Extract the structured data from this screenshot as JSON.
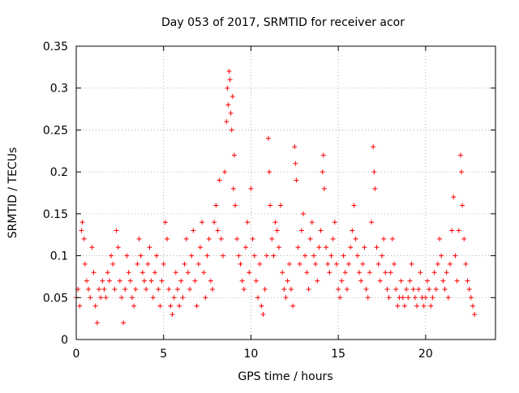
{
  "chart_data": {
    "type": "scatter",
    "title": "Day 053 of 2017, SRMTID for receiver acor",
    "xlabel": "GPS time / hours",
    "ylabel": "SRMTID / TECUs",
    "xlim": [
      0,
      24
    ],
    "ylim": [
      0,
      0.35
    ],
    "xticks": [
      0,
      5,
      10,
      15,
      20
    ],
    "xtick_labels": [
      "0",
      "5",
      "10",
      "15",
      "20"
    ],
    "yticks": [
      0,
      0.05,
      0.1,
      0.15,
      0.2,
      0.25,
      0.3,
      0.35
    ],
    "ytick_labels": [
      "0",
      "0.05",
      "0.1",
      "0.15",
      "0.2",
      "0.25",
      "0.3",
      "0.35"
    ],
    "grid": true,
    "marker": "+",
    "color": "#ff0000",
    "series": [
      {
        "name": "SRMTID",
        "points": [
          [
            0.0,
            0.05
          ],
          [
            0.1,
            0.06
          ],
          [
            0.2,
            0.04
          ],
          [
            0.3,
            0.13
          ],
          [
            0.35,
            0.14
          ],
          [
            0.45,
            0.12
          ],
          [
            0.5,
            0.09
          ],
          [
            0.6,
            0.07
          ],
          [
            0.7,
            0.06
          ],
          [
            0.8,
            0.05
          ],
          [
            0.9,
            0.11
          ],
          [
            1.0,
            0.08
          ],
          [
            1.1,
            0.04
          ],
          [
            1.2,
            0.02
          ],
          [
            1.3,
            0.06
          ],
          [
            1.4,
            0.05
          ],
          [
            1.5,
            0.07
          ],
          [
            1.6,
            0.06
          ],
          [
            1.7,
            0.05
          ],
          [
            1.8,
            0.08
          ],
          [
            1.9,
            0.07
          ],
          [
            2.0,
            0.1
          ],
          [
            2.1,
            0.09
          ],
          [
            2.2,
            0.06
          ],
          [
            2.3,
            0.13
          ],
          [
            2.4,
            0.11
          ],
          [
            2.5,
            0.07
          ],
          [
            2.6,
            0.05
          ],
          [
            2.7,
            0.02
          ],
          [
            2.8,
            0.06
          ],
          [
            2.9,
            0.1
          ],
          [
            3.0,
            0.08
          ],
          [
            3.1,
            0.07
          ],
          [
            3.2,
            0.05
          ],
          [
            3.3,
            0.04
          ],
          [
            3.4,
            0.06
          ],
          [
            3.5,
            0.09
          ],
          [
            3.6,
            0.12
          ],
          [
            3.7,
            0.1
          ],
          [
            3.8,
            0.08
          ],
          [
            3.9,
            0.07
          ],
          [
            4.0,
            0.06
          ],
          [
            4.1,
            0.09
          ],
          [
            4.2,
            0.11
          ],
          [
            4.3,
            0.07
          ],
          [
            4.4,
            0.05
          ],
          [
            4.5,
            0.08
          ],
          [
            4.6,
            0.1
          ],
          [
            4.7,
            0.06
          ],
          [
            4.8,
            0.04
          ],
          [
            4.9,
            0.07
          ],
          [
            5.0,
            0.09
          ],
          [
            5.1,
            0.14
          ],
          [
            5.2,
            0.12
          ],
          [
            5.3,
            0.06
          ],
          [
            5.4,
            0.04
          ],
          [
            5.5,
            0.03
          ],
          [
            5.6,
            0.05
          ],
          [
            5.7,
            0.08
          ],
          [
            5.8,
            0.06
          ],
          [
            5.9,
            0.04
          ],
          [
            6.0,
            0.07
          ],
          [
            6.1,
            0.05
          ],
          [
            6.2,
            0.09
          ],
          [
            6.3,
            0.12
          ],
          [
            6.4,
            0.08
          ],
          [
            6.5,
            0.06
          ],
          [
            6.6,
            0.1
          ],
          [
            6.7,
            0.13
          ],
          [
            6.8,
            0.07
          ],
          [
            6.9,
            0.04
          ],
          [
            7.0,
            0.09
          ],
          [
            7.1,
            0.11
          ],
          [
            7.2,
            0.14
          ],
          [
            7.3,
            0.08
          ],
          [
            7.4,
            0.05
          ],
          [
            7.5,
            0.1
          ],
          [
            7.6,
            0.12
          ],
          [
            7.7,
            0.07
          ],
          [
            7.8,
            0.06
          ],
          [
            7.9,
            0.14
          ],
          [
            8.0,
            0.16
          ],
          [
            8.1,
            0.13
          ],
          [
            8.2,
            0.19
          ],
          [
            8.3,
            0.12
          ],
          [
            8.4,
            0.1
          ],
          [
            8.5,
            0.2
          ],
          [
            8.6,
            0.26
          ],
          [
            8.65,
            0.3
          ],
          [
            8.7,
            0.28
          ],
          [
            8.75,
            0.32
          ],
          [
            8.8,
            0.31
          ],
          [
            8.85,
            0.27
          ],
          [
            8.9,
            0.25
          ],
          [
            8.95,
            0.29
          ],
          [
            9.0,
            0.18
          ],
          [
            9.05,
            0.22
          ],
          [
            9.1,
            0.16
          ],
          [
            9.2,
            0.12
          ],
          [
            9.3,
            0.1
          ],
          [
            9.4,
            0.09
          ],
          [
            9.5,
            0.07
          ],
          [
            9.6,
            0.06
          ],
          [
            9.7,
            0.11
          ],
          [
            9.8,
            0.14
          ],
          [
            9.9,
            0.08
          ],
          [
            10.0,
            0.18
          ],
          [
            10.1,
            0.12
          ],
          [
            10.2,
            0.1
          ],
          [
            10.3,
            0.07
          ],
          [
            10.4,
            0.05
          ],
          [
            10.5,
            0.09
          ],
          [
            10.6,
            0.04
          ],
          [
            10.7,
            0.03
          ],
          [
            10.8,
            0.06
          ],
          [
            10.9,
            0.1
          ],
          [
            11.0,
            0.24
          ],
          [
            11.05,
            0.2
          ],
          [
            11.1,
            0.16
          ],
          [
            11.2,
            0.12
          ],
          [
            11.3,
            0.1
          ],
          [
            11.4,
            0.14
          ],
          [
            11.5,
            0.13
          ],
          [
            11.6,
            0.11
          ],
          [
            11.7,
            0.16
          ],
          [
            11.8,
            0.08
          ],
          [
            11.9,
            0.06
          ],
          [
            12.0,
            0.05
          ],
          [
            12.1,
            0.07
          ],
          [
            12.2,
            0.09
          ],
          [
            12.3,
            0.06
          ],
          [
            12.4,
            0.04
          ],
          [
            12.5,
            0.23
          ],
          [
            12.55,
            0.21
          ],
          [
            12.6,
            0.19
          ],
          [
            12.7,
            0.11
          ],
          [
            12.8,
            0.09
          ],
          [
            12.9,
            0.13
          ],
          [
            13.0,
            0.15
          ],
          [
            13.1,
            0.1
          ],
          [
            13.2,
            0.08
          ],
          [
            13.3,
            0.06
          ],
          [
            13.4,
            0.12
          ],
          [
            13.5,
            0.14
          ],
          [
            13.6,
            0.1
          ],
          [
            13.7,
            0.09
          ],
          [
            13.8,
            0.07
          ],
          [
            13.9,
            0.11
          ],
          [
            14.0,
            0.13
          ],
          [
            14.1,
            0.2
          ],
          [
            14.15,
            0.22
          ],
          [
            14.2,
            0.18
          ],
          [
            14.3,
            0.11
          ],
          [
            14.4,
            0.09
          ],
          [
            14.5,
            0.08
          ],
          [
            14.6,
            0.1
          ],
          [
            14.7,
            0.12
          ],
          [
            14.8,
            0.14
          ],
          [
            14.9,
            0.09
          ],
          [
            15.0,
            0.06
          ],
          [
            15.1,
            0.05
          ],
          [
            15.2,
            0.07
          ],
          [
            15.3,
            0.1
          ],
          [
            15.4,
            0.08
          ],
          [
            15.5,
            0.06
          ],
          [
            15.6,
            0.09
          ],
          [
            15.7,
            0.11
          ],
          [
            15.8,
            0.13
          ],
          [
            15.9,
            0.16
          ],
          [
            16.0,
            0.12
          ],
          [
            16.1,
            0.1
          ],
          [
            16.2,
            0.08
          ],
          [
            16.3,
            0.07
          ],
          [
            16.4,
            0.09
          ],
          [
            16.5,
            0.11
          ],
          [
            16.6,
            0.06
          ],
          [
            16.7,
            0.05
          ],
          [
            16.8,
            0.08
          ],
          [
            16.9,
            0.14
          ],
          [
            17.0,
            0.23
          ],
          [
            17.05,
            0.2
          ],
          [
            17.1,
            0.18
          ],
          [
            17.2,
            0.11
          ],
          [
            17.3,
            0.09
          ],
          [
            17.4,
            0.07
          ],
          [
            17.5,
            0.1
          ],
          [
            17.6,
            0.12
          ],
          [
            17.7,
            0.08
          ],
          [
            17.8,
            0.06
          ],
          [
            17.9,
            0.05
          ],
          [
            18.0,
            0.08
          ],
          [
            18.1,
            0.12
          ],
          [
            18.2,
            0.09
          ],
          [
            18.3,
            0.06
          ],
          [
            18.4,
            0.04
          ],
          [
            18.5,
            0.05
          ],
          [
            18.6,
            0.07
          ],
          [
            18.7,
            0.05
          ],
          [
            18.8,
            0.04
          ],
          [
            18.9,
            0.06
          ],
          [
            19.0,
            0.05
          ],
          [
            19.1,
            0.07
          ],
          [
            19.2,
            0.09
          ],
          [
            19.3,
            0.06
          ],
          [
            19.4,
            0.05
          ],
          [
            19.5,
            0.04
          ],
          [
            19.6,
            0.06
          ],
          [
            19.7,
            0.08
          ],
          [
            19.8,
            0.05
          ],
          [
            19.9,
            0.04
          ],
          [
            20.0,
            0.05
          ],
          [
            20.1,
            0.07
          ],
          [
            20.2,
            0.06
          ],
          [
            20.3,
            0.04
          ],
          [
            20.4,
            0.05
          ],
          [
            20.5,
            0.08
          ],
          [
            20.6,
            0.06
          ],
          [
            20.7,
            0.09
          ],
          [
            20.8,
            0.12
          ],
          [
            20.9,
            0.1
          ],
          [
            21.0,
            0.07
          ],
          [
            21.1,
            0.06
          ],
          [
            21.2,
            0.08
          ],
          [
            21.3,
            0.05
          ],
          [
            21.4,
            0.09
          ],
          [
            21.5,
            0.13
          ],
          [
            21.6,
            0.17
          ],
          [
            21.7,
            0.1
          ],
          [
            21.8,
            0.07
          ],
          [
            21.9,
            0.13
          ],
          [
            22.0,
            0.22
          ],
          [
            22.05,
            0.2
          ],
          [
            22.1,
            0.16
          ],
          [
            22.2,
            0.12
          ],
          [
            22.3,
            0.09
          ],
          [
            22.4,
            0.07
          ],
          [
            22.5,
            0.06
          ],
          [
            22.6,
            0.05
          ],
          [
            22.7,
            0.04
          ],
          [
            22.8,
            0.03
          ]
        ]
      }
    ]
  }
}
